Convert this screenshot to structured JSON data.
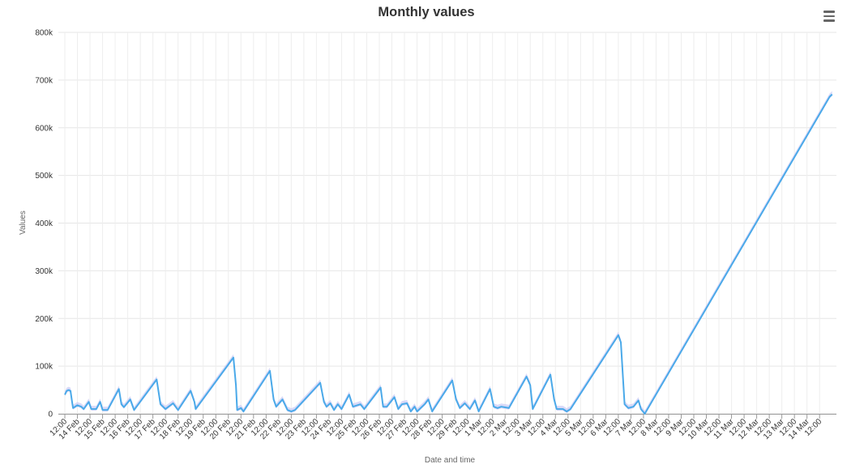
{
  "chart_data": {
    "type": "area",
    "title": "Monthly values",
    "xlabel": "Date and time",
    "ylabel": "Values",
    "ylim": [
      0,
      800000
    ],
    "y_ticks": [
      0,
      100000,
      200000,
      300000,
      400000,
      500000,
      600000,
      700000,
      800000
    ],
    "y_tick_labels": [
      "0",
      "100k",
      "200k",
      "300k",
      "400k",
      "500k",
      "600k",
      "700k",
      "800k"
    ],
    "x_tick_labels": [
      "12:00",
      "14 Feb",
      "12:00",
      "15 Feb",
      "12:00",
      "16 Feb",
      "12:00",
      "17 Feb",
      "12:00",
      "18 Feb",
      "12:00",
      "19 Feb",
      "12:00",
      "20 Feb",
      "12:00",
      "21 Feb",
      "12:00",
      "22 Feb",
      "12:00",
      "23 Feb",
      "12:00",
      "24 Feb",
      "12:00",
      "25 Feb",
      "12:00",
      "26 Feb",
      "12:00",
      "27 Feb",
      "12:00",
      "28 Feb",
      "12:00",
      "29 Feb",
      "12:00",
      "1 Mar",
      "12:00",
      "2 Mar",
      "12:00",
      "3 Mar",
      "12:00",
      "4 Mar",
      "12:00",
      "5 Mar",
      "12:00",
      "6 Mar",
      "12:00",
      "7 Mar",
      "12:00",
      "8 Mar",
      "12:00",
      "9 Mar",
      "12:00",
      "10 Mar",
      "12:00",
      "11 Mar",
      "12:00",
      "12 Mar",
      "12:00",
      "13 Mar",
      "12:00",
      "14 Mar",
      "12:00"
    ],
    "grid": true,
    "legend": "none",
    "series": [
      {
        "color": "#4aa9e9",
        "band_color": "#c9c9f5",
        "points": [
          [
            0,
            40000
          ],
          [
            0.15,
            48000
          ],
          [
            0.3,
            50000
          ],
          [
            0.45,
            48000
          ],
          [
            0.55,
            30000
          ],
          [
            0.65,
            12000
          ],
          [
            1,
            18000
          ],
          [
            1.3,
            15000
          ],
          [
            1.5,
            10000
          ],
          [
            1.9,
            25000
          ],
          [
            2.1,
            10000
          ],
          [
            2.5,
            10000
          ],
          [
            2.8,
            25000
          ],
          [
            3.0,
            8000
          ],
          [
            3.4,
            8000
          ],
          [
            4.3,
            52000
          ],
          [
            4.5,
            20000
          ],
          [
            4.7,
            14000
          ],
          [
            5.2,
            30000
          ],
          [
            5.5,
            8000
          ],
          [
            7.3,
            72000
          ],
          [
            7.6,
            20000
          ],
          [
            8,
            10000
          ],
          [
            8.6,
            22000
          ],
          [
            9,
            8000
          ],
          [
            10,
            48000
          ],
          [
            10.3,
            25000
          ],
          [
            10.4,
            10000
          ],
          [
            13.4,
            118000
          ],
          [
            13.6,
            60000
          ],
          [
            13.7,
            8000
          ],
          [
            14.0,
            12000
          ],
          [
            14.2,
            5000
          ],
          [
            16.3,
            90000
          ],
          [
            16.6,
            30000
          ],
          [
            16.8,
            15000
          ],
          [
            17.3,
            30000
          ],
          [
            17.7,
            8000
          ],
          [
            18,
            5000
          ],
          [
            18.3,
            8000
          ],
          [
            20.3,
            65000
          ],
          [
            20.6,
            25000
          ],
          [
            20.8,
            15000
          ],
          [
            21.1,
            22000
          ],
          [
            21.4,
            8000
          ],
          [
            21.7,
            20000
          ],
          [
            22,
            10000
          ],
          [
            22.6,
            40000
          ],
          [
            22.9,
            15000
          ],
          [
            23.5,
            20000
          ],
          [
            23.8,
            10000
          ],
          [
            25.1,
            55000
          ],
          [
            25.3,
            15000
          ],
          [
            25.6,
            15000
          ],
          [
            26.2,
            35000
          ],
          [
            26.5,
            10000
          ],
          [
            26.8,
            20000
          ],
          [
            27.2,
            22000
          ],
          [
            27.5,
            5000
          ],
          [
            27.8,
            15000
          ],
          [
            28,
            5000
          ],
          [
            28.6,
            20000
          ],
          [
            28.9,
            30000
          ],
          [
            29.2,
            5000
          ],
          [
            30.8,
            70000
          ],
          [
            31.1,
            30000
          ],
          [
            31.4,
            12000
          ],
          [
            31.8,
            22000
          ],
          [
            32.2,
            10000
          ],
          [
            32.6,
            28000
          ],
          [
            32.9,
            5000
          ],
          [
            33.8,
            52000
          ],
          [
            34.1,
            15000
          ],
          [
            34.4,
            12000
          ],
          [
            34.7,
            15000
          ],
          [
            35.3,
            12000
          ],
          [
            36.7,
            78000
          ],
          [
            37.0,
            60000
          ],
          [
            37.2,
            10000
          ],
          [
            38.6,
            82000
          ],
          [
            38.9,
            30000
          ],
          [
            39.1,
            10000
          ],
          [
            39.6,
            10000
          ],
          [
            39.9,
            5000
          ],
          [
            40.2,
            10000
          ],
          [
            44.0,
            165000
          ],
          [
            44.2,
            150000
          ],
          [
            44.5,
            20000
          ],
          [
            44.8,
            12000
          ],
          [
            45.2,
            15000
          ],
          [
            45.6,
            28000
          ],
          [
            45.8,
            10000
          ],
          [
            46.1,
            0
          ],
          [
            60.8,
            665000
          ],
          [
            61.0,
            670000
          ]
        ]
      }
    ]
  }
}
